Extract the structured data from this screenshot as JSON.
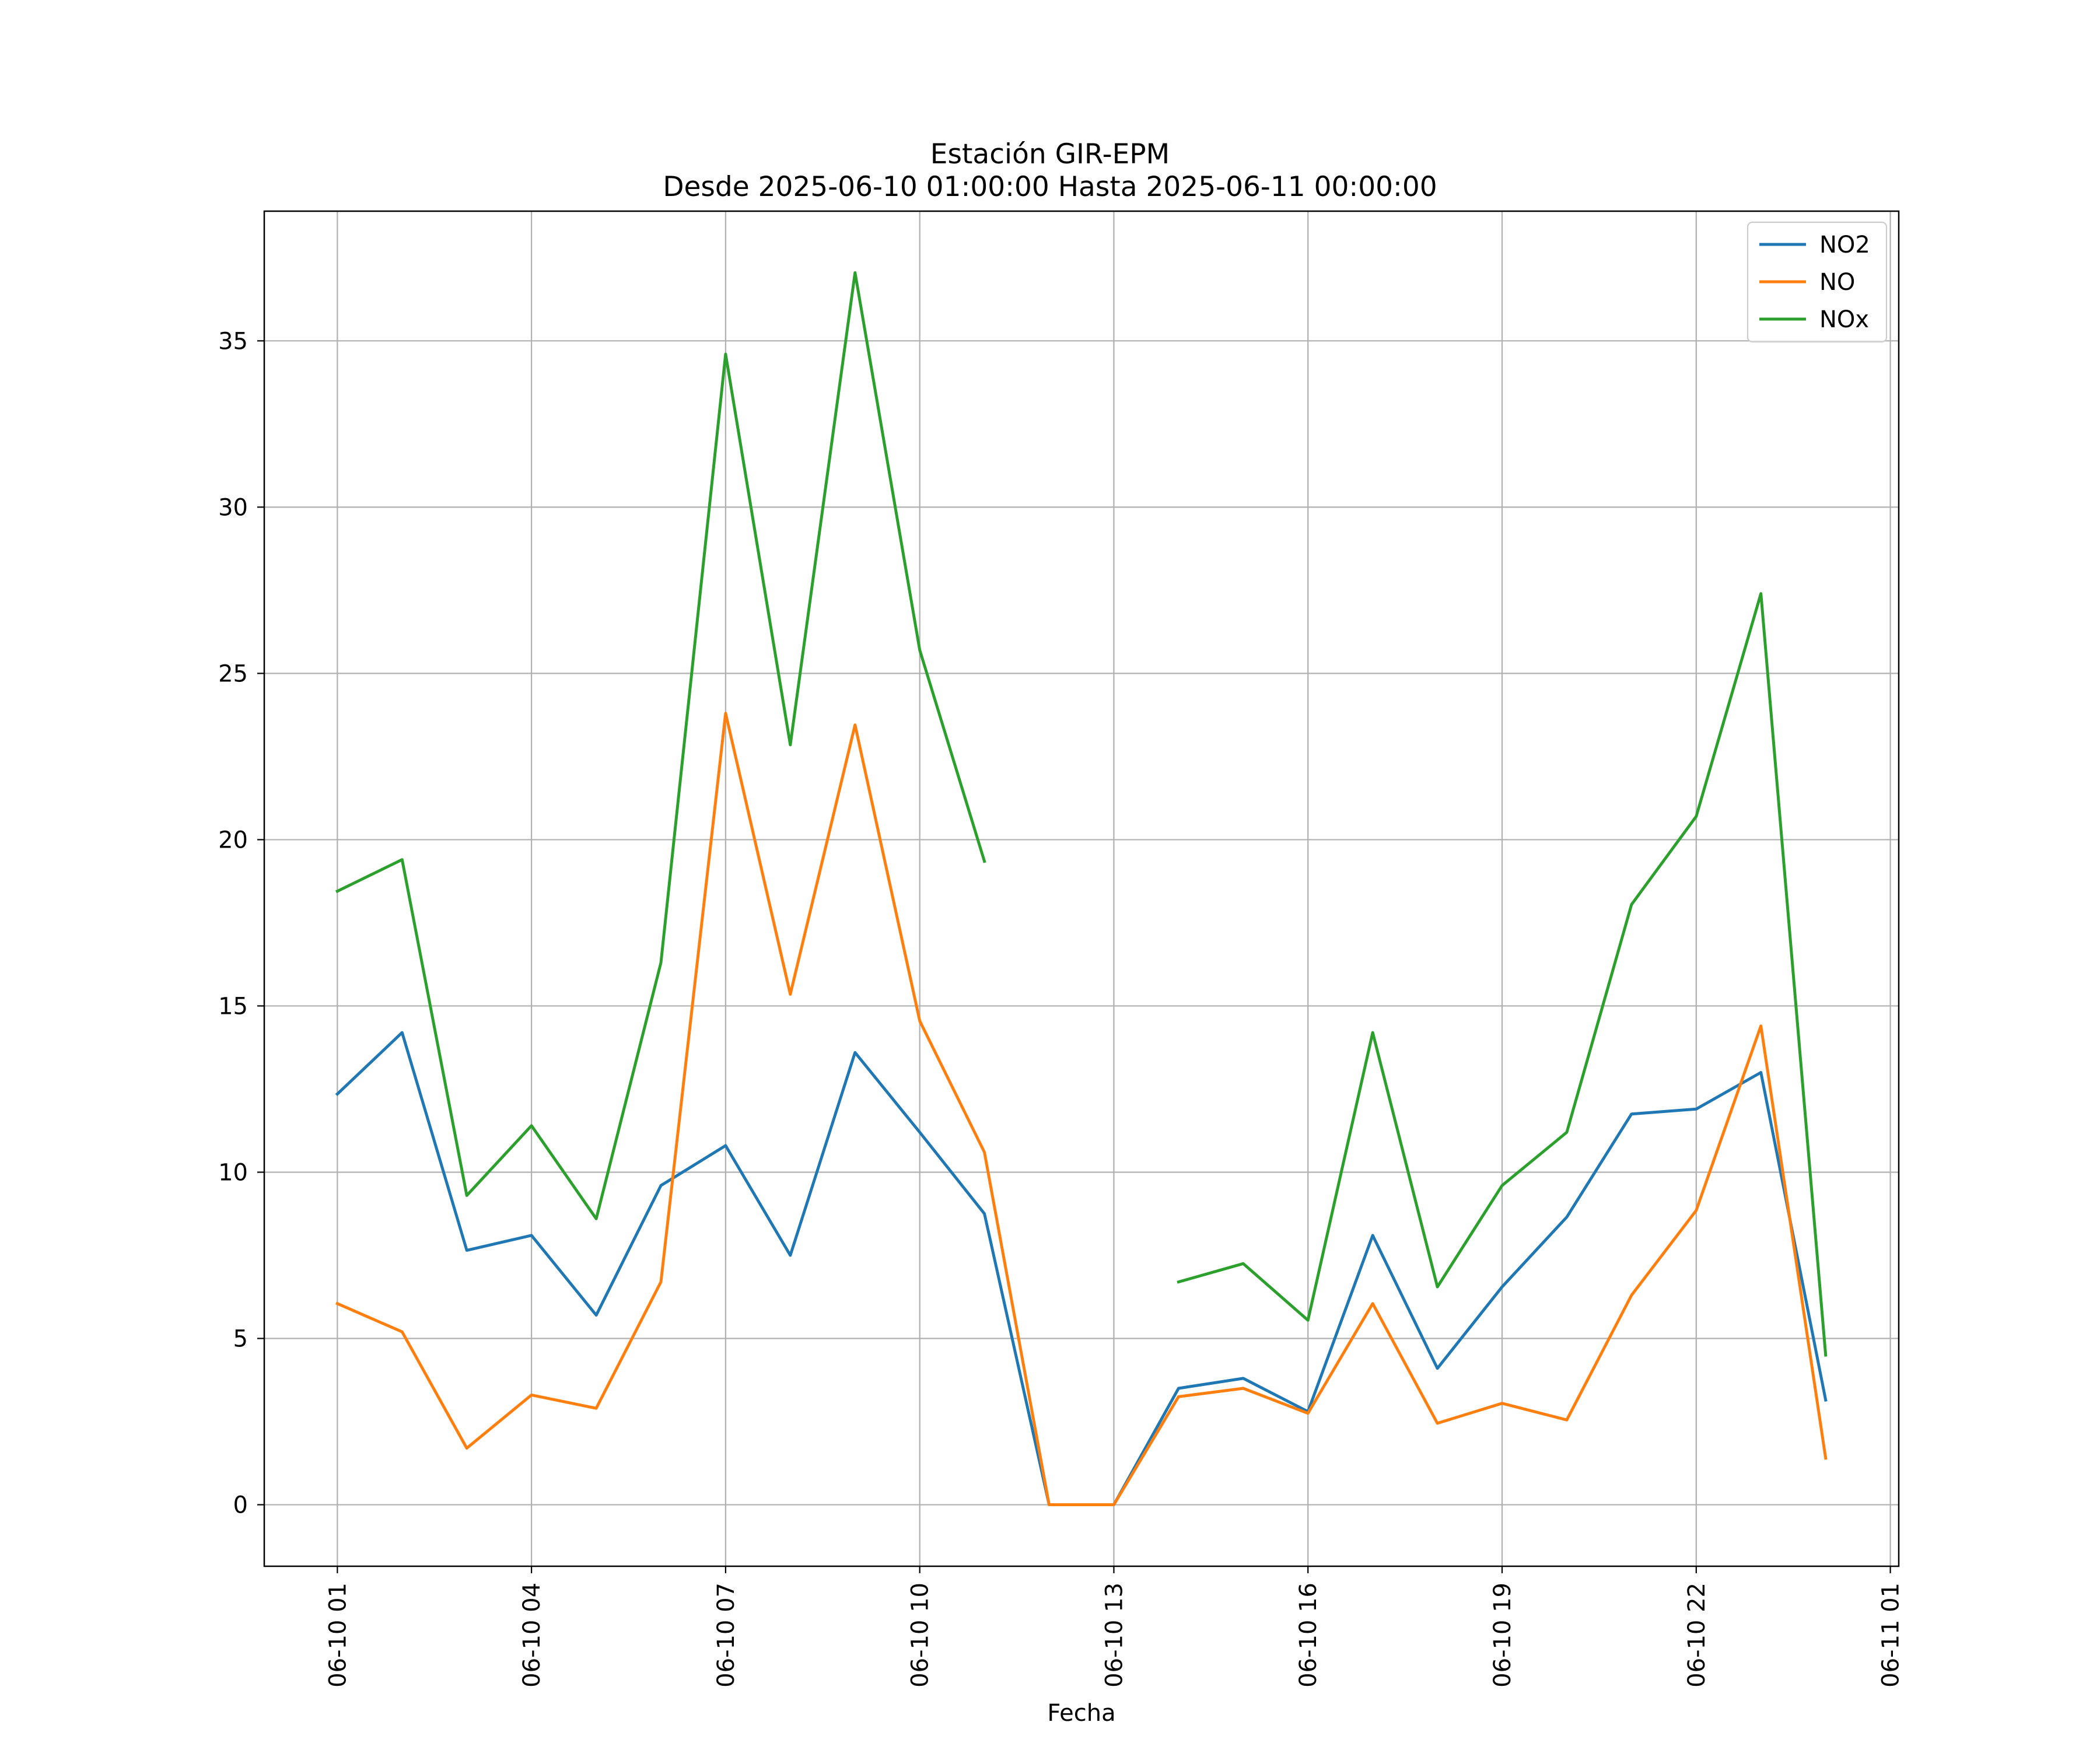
{
  "chart_data": {
    "type": "line",
    "title": "Estación GIR-EPM",
    "subtitle": "Desde 2025-06-10 01:00:00 Hasta 2025-06-11 00:00:00",
    "xlabel": "Fecha",
    "ylabel": "",
    "x_hours": [
      1,
      2,
      3,
      4,
      5,
      6,
      7,
      8,
      9,
      10,
      11,
      12,
      13,
      14,
      15,
      16,
      17,
      18,
      19,
      20,
      21,
      22,
      23,
      24
    ],
    "xlim_hours": [
      -0.13,
      25.13
    ],
    "ylim": [
      -1.85,
      38.9
    ],
    "x_ticks": [
      {
        "hour": 1,
        "label": "06-10 01"
      },
      {
        "hour": 4,
        "label": "06-10 04"
      },
      {
        "hour": 7,
        "label": "06-10 07"
      },
      {
        "hour": 10,
        "label": "06-10 10"
      },
      {
        "hour": 13,
        "label": "06-10 13"
      },
      {
        "hour": 16,
        "label": "06-10 16"
      },
      {
        "hour": 19,
        "label": "06-10 19"
      },
      {
        "hour": 22,
        "label": "06-10 22"
      },
      {
        "hour": 25,
        "label": "06-11 01"
      }
    ],
    "y_ticks": [
      {
        "value": 0,
        "label": "0"
      },
      {
        "value": 5,
        "label": "5"
      },
      {
        "value": 10,
        "label": "10"
      },
      {
        "value": 15,
        "label": "15"
      },
      {
        "value": 20,
        "label": "20"
      },
      {
        "value": 25,
        "label": "25"
      },
      {
        "value": 30,
        "label": "30"
      },
      {
        "value": 35,
        "label": "35"
      }
    ],
    "grid": true,
    "legend_position": "top-right",
    "series": [
      {
        "name": "NO2",
        "color": "#1f77b4",
        "values": [
          12.35,
          14.2,
          7.65,
          8.1,
          5.7,
          9.6,
          10.8,
          7.5,
          13.6,
          11.2,
          8.75,
          0,
          0,
          3.5,
          3.8,
          2.8,
          8.1,
          4.1,
          6.55,
          8.65,
          11.75,
          11.9,
          13.0,
          3.15
        ]
      },
      {
        "name": "NO",
        "color": "#ff7f0e",
        "values": [
          6.05,
          5.2,
          1.7,
          3.3,
          2.9,
          6.7,
          23.8,
          15.35,
          23.45,
          14.55,
          10.6,
          0,
          0,
          3.25,
          3.5,
          2.75,
          6.05,
          2.45,
          3.05,
          2.55,
          6.3,
          8.85,
          14.4,
          1.4
        ]
      },
      {
        "name": "NOx",
        "color": "#2ca02c",
        "values": [
          18.45,
          19.4,
          9.3,
          11.4,
          8.6,
          16.3,
          34.6,
          22.85,
          37.05,
          25.7,
          19.35,
          null,
          null,
          6.7,
          7.25,
          5.55,
          14.2,
          6.55,
          9.6,
          11.2,
          18.05,
          20.7,
          27.4,
          4.5
        ]
      }
    ]
  }
}
